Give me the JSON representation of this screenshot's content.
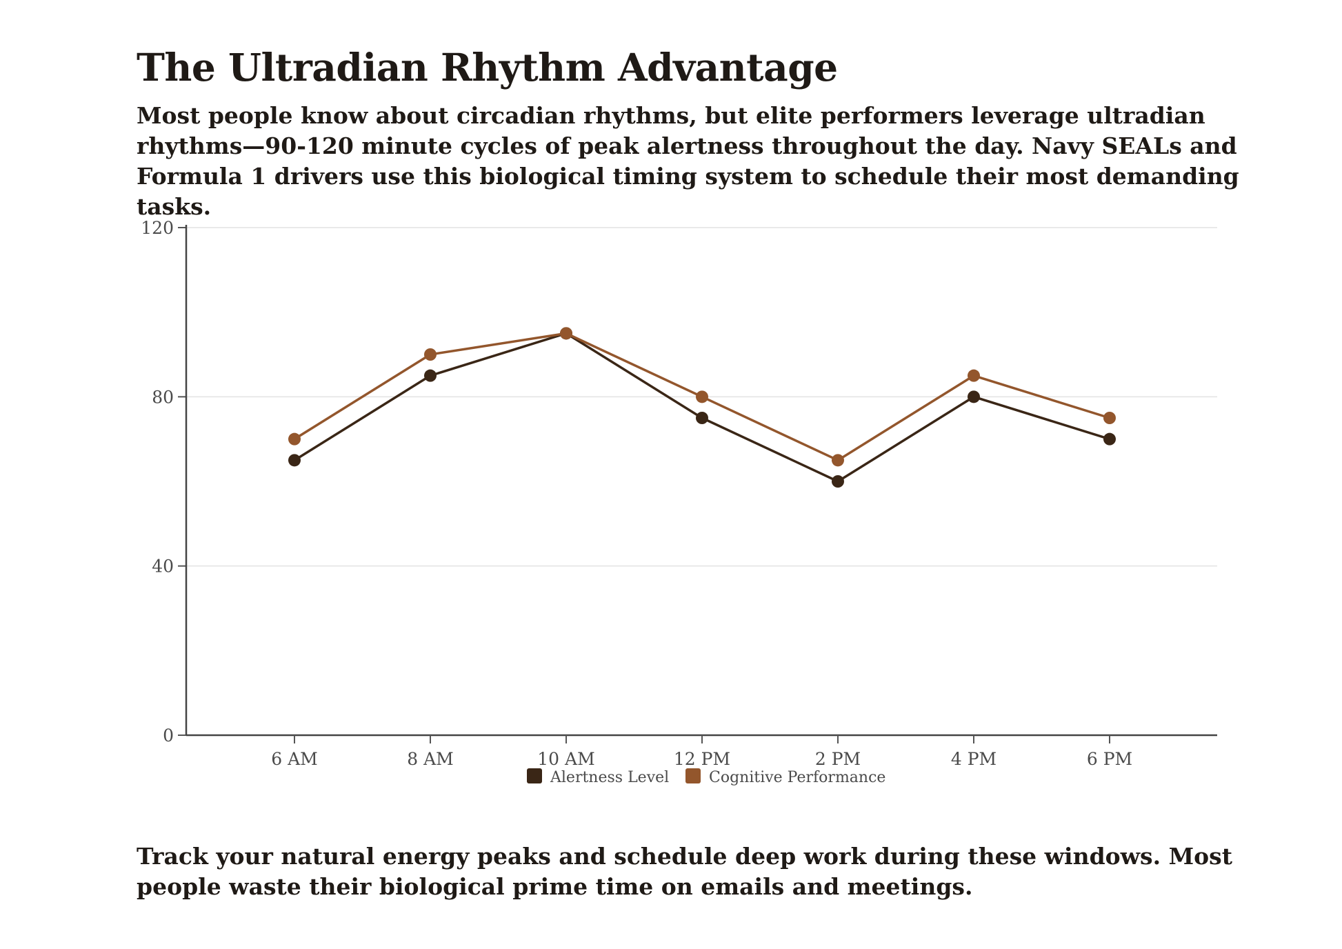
{
  "page": {
    "title": "The Ultradian Rhythm Advantage",
    "intro": "Most people know about circadian rhythms, but elite performers leverage ultradian rhythms—90-120 minute cycles of peak alertness throughout the day. Navy SEALs and Formula 1 drivers use this biological timing system to schedule their most demanding tasks.",
    "outro": "Track your natural energy peaks and schedule deep work during these windows. Most people waste their biological prime time on emails and meetings."
  },
  "chart_data": {
    "type": "line",
    "title": "",
    "xlabel": "",
    "ylabel": "",
    "categories": [
      "6 AM",
      "8 AM",
      "10 AM",
      "12 PM",
      "2 PM",
      "4 PM",
      "6 PM"
    ],
    "ylim": [
      0,
      120
    ],
    "yticks": [
      0,
      40,
      80,
      120
    ],
    "grid": true,
    "legend_position": "bottom",
    "series": [
      {
        "name": "Alertness Level",
        "color": "#3a2616",
        "values": [
          65,
          85,
          95,
          75,
          60,
          80,
          70
        ]
      },
      {
        "name": "Cognitive Performance",
        "color": "#93562c",
        "values": [
          70,
          90,
          95,
          80,
          65,
          85,
          75
        ]
      }
    ]
  }
}
